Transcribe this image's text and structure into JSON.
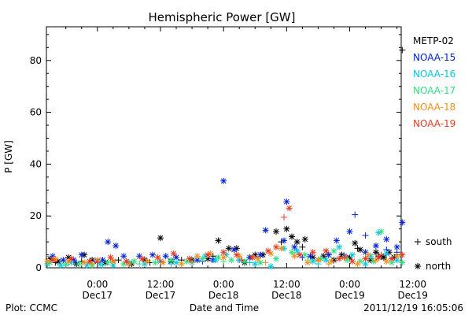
{
  "chart_data": {
    "type": "scatter",
    "title": "Hemispheric Power [GW]",
    "ylabel": "P [GW]",
    "xlabel": "Date and Time",
    "ylim": [
      0,
      93
    ],
    "xlim": [
      -3.7,
      63.8
    ],
    "y_ticks": [
      0,
      20,
      40,
      60,
      80
    ],
    "x_ticks": [
      {
        "x": 6,
        "time": "0:00",
        "date": "Dec17"
      },
      {
        "x": 18,
        "time": "12:00",
        "date": "Dec17"
      },
      {
        "x": 30,
        "time": "0:00",
        "date": "Dec18"
      },
      {
        "x": 42,
        "time": "12:00",
        "date": "Dec18"
      },
      {
        "x": 54,
        "time": "0:00",
        "date": "Dec19"
      },
      {
        "x": 66,
        "time": "12:00",
        "date": "Dec19"
      }
    ],
    "x_unit": "hours since 2011-12-16 18:00 UT",
    "grid": false,
    "legend_position": "right",
    "legend_title": "",
    "symbol_legend": [
      {
        "symbol": "+",
        "label": "south"
      },
      {
        "symbol": "*",
        "label": "north"
      }
    ],
    "series": [
      {
        "name": "METP-02",
        "color": "#000000",
        "points": [
          [
            -3.0,
            3.5,
            "n"
          ],
          [
            -1.5,
            2.5,
            "n"
          ],
          [
            0.5,
            4,
            "n"
          ],
          [
            2,
            1.5,
            "n"
          ],
          [
            3.5,
            5,
            "n"
          ],
          [
            5,
            3,
            "n"
          ],
          [
            7.5,
            2,
            "n"
          ],
          [
            9,
            2.5,
            "n"
          ],
          [
            12.5,
            1.5,
            "n"
          ],
          [
            15,
            3,
            "n"
          ],
          [
            18,
            11.5,
            "n"
          ],
          [
            20,
            2.5,
            "n"
          ],
          [
            24,
            3,
            "n"
          ],
          [
            27,
            3.5,
            "n"
          ],
          [
            29,
            10.5,
            "n"
          ],
          [
            31,
            7.5,
            "n"
          ],
          [
            32.5,
            7.5,
            "n"
          ],
          [
            34,
            2,
            "n"
          ],
          [
            36,
            5,
            "n"
          ],
          [
            37.5,
            5,
            "n"
          ],
          [
            40,
            14,
            "n"
          ],
          [
            42,
            15,
            "n"
          ],
          [
            43,
            12,
            "n"
          ],
          [
            44,
            10,
            "n"
          ],
          [
            45.5,
            11,
            "n"
          ],
          [
            47,
            4,
            "n"
          ],
          [
            49,
            4.5,
            "n"
          ],
          [
            51,
            3,
            "n"
          ],
          [
            52.5,
            5,
            "n"
          ],
          [
            54,
            4,
            "n"
          ],
          [
            55,
            9.5,
            "n"
          ],
          [
            56,
            7,
            "n"
          ],
          [
            58,
            3,
            "n"
          ],
          [
            59,
            6,
            "n"
          ],
          [
            60,
            4.5,
            "n"
          ],
          [
            60.5,
            4,
            "n"
          ],
          [
            61.5,
            6,
            "n"
          ],
          [
            62.5,
            4,
            "n"
          ],
          [
            64,
            84,
            "s"
          ],
          [
            63,
            5,
            "s"
          ],
          [
            59.5,
            4.5,
            "s"
          ],
          [
            55.5,
            7.5,
            "s"
          ],
          [
            50,
            5,
            "s"
          ],
          [
            45,
            8,
            "s"
          ],
          [
            41,
            10,
            "s"
          ],
          [
            35,
            4,
            "s"
          ],
          [
            28,
            4.5,
            "s"
          ],
          [
            22,
            3,
            "s"
          ],
          [
            16,
            2,
            "s"
          ],
          [
            10,
            3,
            "s"
          ],
          [
            3,
            2.5,
            "s"
          ],
          [
            -2,
            2,
            "s"
          ]
        ]
      },
      {
        "name": "NOAA-15",
        "color": "#0020d8",
        "points": [
          [
            -2.5,
            4.5,
            "n"
          ],
          [
            -0.5,
            3,
            "n"
          ],
          [
            1.5,
            3,
            "n"
          ],
          [
            3,
            5,
            "n"
          ],
          [
            6,
            2.5,
            "n"
          ],
          [
            7,
            3,
            "n"
          ],
          [
            8,
            10,
            "n"
          ],
          [
            9.5,
            8.5,
            "n"
          ],
          [
            11,
            4.5,
            "n"
          ],
          [
            14,
            4.5,
            "n"
          ],
          [
            16.5,
            5,
            "n"
          ],
          [
            19,
            4.5,
            "n"
          ],
          [
            21,
            4,
            "n"
          ],
          [
            25,
            3,
            "n"
          ],
          [
            28,
            3,
            "n"
          ],
          [
            30,
            33.5,
            "n"
          ],
          [
            32,
            7,
            "n"
          ],
          [
            35,
            4,
            "n"
          ],
          [
            37,
            5,
            "n"
          ],
          [
            38,
            14.5,
            "n"
          ],
          [
            41.5,
            10.5,
            "n"
          ],
          [
            42,
            25.5,
            "n"
          ],
          [
            43.5,
            8,
            "n"
          ],
          [
            46.5,
            4.5,
            "n"
          ],
          [
            48,
            3,
            "n"
          ],
          [
            50,
            5,
            "n"
          ],
          [
            51.5,
            10.5,
            "n"
          ],
          [
            53,
            4.5,
            "n"
          ],
          [
            54,
            14,
            "n"
          ],
          [
            57,
            6,
            "n"
          ],
          [
            59,
            8.5,
            "n"
          ],
          [
            61,
            11,
            "n"
          ],
          [
            63,
            8,
            "n"
          ],
          [
            64,
            17.5,
            "n"
          ],
          [
            55,
            20.5,
            "s"
          ],
          [
            57,
            12.5,
            "s"
          ],
          [
            61,
            7,
            "s"
          ],
          [
            63,
            6,
            "s"
          ],
          [
            45,
            4,
            "s"
          ],
          [
            33,
            3,
            "s"
          ],
          [
            26,
            2.5,
            "s"
          ],
          [
            12,
            2,
            "s"
          ],
          [
            2,
            2,
            "s"
          ]
        ]
      },
      {
        "name": "NOAA-16",
        "color": "#00c8e0",
        "points": [
          [
            -3.5,
            1.5,
            "n"
          ],
          [
            -1,
            1,
            "n"
          ],
          [
            1,
            2,
            "n"
          ],
          [
            4,
            1,
            "n"
          ],
          [
            6.5,
            1.5,
            "n"
          ],
          [
            9,
            1,
            "n"
          ],
          [
            12,
            2,
            "n"
          ],
          [
            15,
            1.5,
            "n"
          ],
          [
            18,
            2.5,
            "n"
          ],
          [
            21,
            2,
            "n"
          ],
          [
            24,
            2,
            "n"
          ],
          [
            26.5,
            4.5,
            "n"
          ],
          [
            28.5,
            3,
            "n"
          ],
          [
            30.5,
            5,
            "n"
          ],
          [
            33,
            3,
            "n"
          ],
          [
            36,
            1.5,
            "n"
          ],
          [
            39,
            0.5,
            "n"
          ],
          [
            41.5,
            7.5,
            "n"
          ],
          [
            44,
            6.5,
            "n"
          ],
          [
            47,
            2.5,
            "n"
          ],
          [
            49.5,
            3,
            "n"
          ],
          [
            52,
            8,
            "n"
          ],
          [
            54.5,
            5,
            "n"
          ],
          [
            57,
            1.5,
            "n"
          ],
          [
            58,
            4.5,
            "n"
          ],
          [
            59.5,
            13.5,
            "n"
          ],
          [
            61,
            5.5,
            "n"
          ],
          [
            63,
            3,
            "n"
          ],
          [
            48,
            1.5,
            "s"
          ],
          [
            35,
            2,
            "s"
          ],
          [
            20,
            1.5,
            "s"
          ],
          [
            7,
            1,
            "s"
          ],
          [
            0,
            1,
            "s"
          ]
        ]
      },
      {
        "name": "NOAA-17",
        "color": "#30e080",
        "points": [
          [
            -3,
            2,
            "n"
          ],
          [
            0,
            1.5,
            "n"
          ],
          [
            2.5,
            1.5,
            "n"
          ],
          [
            5,
            1,
            "n"
          ],
          [
            8,
            2,
            "n"
          ],
          [
            11,
            1.5,
            "n"
          ],
          [
            13,
            2.5,
            "n"
          ],
          [
            17,
            2,
            "n"
          ],
          [
            20,
            3,
            "n"
          ],
          [
            23,
            2.5,
            "n"
          ],
          [
            26,
            3.5,
            "n"
          ],
          [
            29,
            4,
            "n"
          ],
          [
            31.5,
            3,
            "n"
          ],
          [
            34,
            2.5,
            "n"
          ],
          [
            37,
            2,
            "n"
          ],
          [
            40,
            3.5,
            "n"
          ],
          [
            43,
            6,
            "n"
          ],
          [
            45.5,
            5,
            "n"
          ],
          [
            48.5,
            3.5,
            "n"
          ],
          [
            51,
            6.5,
            "n"
          ],
          [
            53.5,
            3,
            "n"
          ],
          [
            56,
            2.5,
            "n"
          ],
          [
            58.5,
            2.5,
            "n"
          ],
          [
            60,
            14,
            "n"
          ],
          [
            62,
            2,
            "n"
          ],
          [
            64,
            2,
            "n"
          ],
          [
            46,
            3,
            "s"
          ],
          [
            30,
            2.5,
            "s"
          ],
          [
            14,
            1.5,
            "s"
          ]
        ]
      },
      {
        "name": "NOAA-18",
        "color": "#f09018",
        "points": [
          [
            -3.5,
            2.5,
            "n"
          ],
          [
            -2,
            3.5,
            "n"
          ],
          [
            0.5,
            2.5,
            "n"
          ],
          [
            3.5,
            2,
            "n"
          ],
          [
            6,
            3,
            "n"
          ],
          [
            9,
            2.5,
            "n"
          ],
          [
            12,
            1.5,
            "n"
          ],
          [
            15.5,
            2.5,
            "n"
          ],
          [
            18.5,
            2,
            "n"
          ],
          [
            22,
            1.5,
            "n"
          ],
          [
            25,
            4.5,
            "n"
          ],
          [
            27.5,
            5.5,
            "n"
          ],
          [
            30,
            4,
            "n"
          ],
          [
            33,
            4.5,
            "n"
          ],
          [
            36.5,
            3.5,
            "n"
          ],
          [
            39,
            5.5,
            "n"
          ],
          [
            41,
            7.5,
            "n"
          ],
          [
            43.5,
            4.5,
            "n"
          ],
          [
            46,
            2,
            "n"
          ],
          [
            48,
            3,
            "n"
          ],
          [
            50.5,
            2.5,
            "n"
          ],
          [
            53,
            4,
            "n"
          ],
          [
            55.5,
            1.5,
            "n"
          ],
          [
            57.5,
            5,
            "n"
          ],
          [
            59,
            3,
            "n"
          ],
          [
            61,
            2.5,
            "n"
          ],
          [
            63,
            4.5,
            "n"
          ],
          [
            50,
            1.5,
            "s"
          ],
          [
            38,
            2,
            "s"
          ],
          [
            24,
            2,
            "s"
          ],
          [
            5,
            1.5,
            "s"
          ]
        ]
      },
      {
        "name": "NOAA-19",
        "color": "#e83820",
        "points": [
          [
            -2.5,
            3,
            "n"
          ],
          [
            1,
            3.5,
            "n"
          ],
          [
            4.5,
            2.5,
            "n"
          ],
          [
            8.5,
            4,
            "n"
          ],
          [
            11.5,
            2.5,
            "n"
          ],
          [
            14.5,
            3.5,
            "n"
          ],
          [
            17.5,
            4,
            "n"
          ],
          [
            20.5,
            5.5,
            "n"
          ],
          [
            23.5,
            3.5,
            "n"
          ],
          [
            27,
            5,
            "n"
          ],
          [
            30,
            6,
            "n"
          ],
          [
            32.5,
            5,
            "n"
          ],
          [
            35.5,
            4,
            "n"
          ],
          [
            38.5,
            6.5,
            "n"
          ],
          [
            40,
            8,
            "n"
          ],
          [
            42.5,
            23,
            "n"
          ],
          [
            44.5,
            5,
            "n"
          ],
          [
            47,
            6,
            "n"
          ],
          [
            49.5,
            6.5,
            "n"
          ],
          [
            52,
            3.5,
            "n"
          ],
          [
            54.5,
            2.5,
            "n"
          ],
          [
            57,
            3.5,
            "n"
          ],
          [
            59.5,
            4,
            "n"
          ],
          [
            62,
            3.5,
            "n"
          ],
          [
            64,
            5,
            "n"
          ],
          [
            41.5,
            19.5,
            "s"
          ],
          [
            60,
            5,
            "s"
          ],
          [
            53,
            4,
            "s"
          ],
          [
            33.5,
            3,
            "s"
          ],
          [
            18,
            2.5,
            "s"
          ],
          [
            6,
            2,
            "s"
          ]
        ]
      }
    ]
  },
  "footer": {
    "left": "Plot: CCMC",
    "center": "Date and Time",
    "right": "2011/12/19 16:05:06"
  }
}
